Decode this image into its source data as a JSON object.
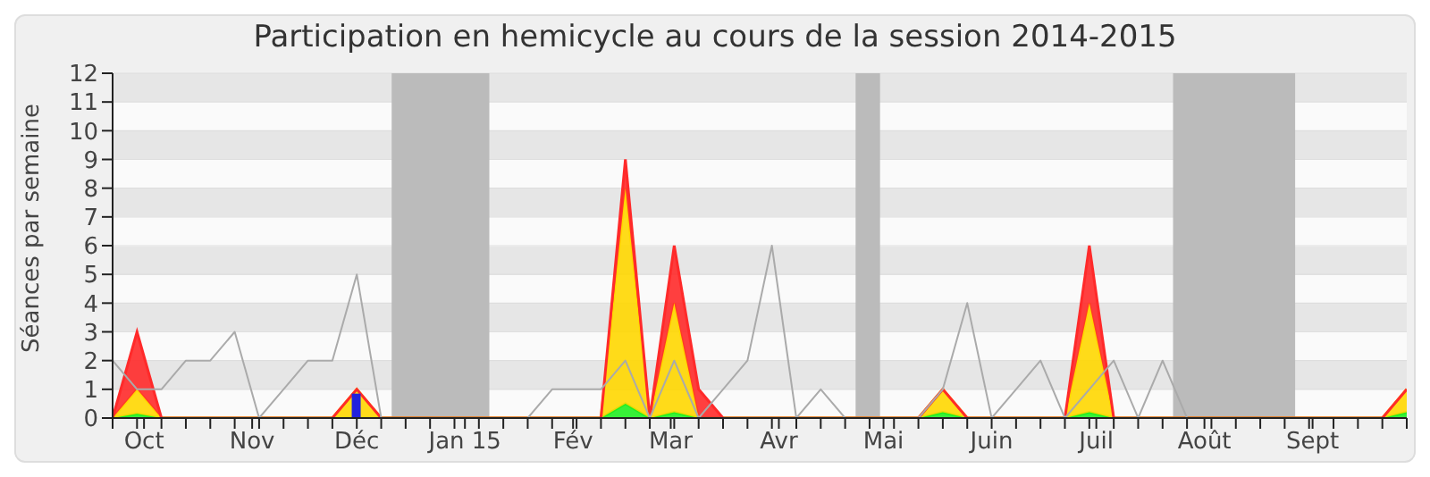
{
  "chart_data": {
    "type": "area",
    "title": "Participation en hemicycle au cours de la session 2014-2015",
    "ylabel": "Séances par semaine",
    "x": [
      "2014-09-22",
      "2014-09-29",
      "2014-10-06",
      "2014-10-13",
      "2014-10-20",
      "2014-10-27",
      "2014-11-03",
      "2014-11-10",
      "2014-11-17",
      "2014-11-24",
      "2014-12-01",
      "2014-12-08",
      "2014-12-15",
      "2014-12-22",
      "2014-12-29",
      "2015-01-05",
      "2015-01-12",
      "2015-01-19",
      "2015-01-26",
      "2015-02-02",
      "2015-02-09",
      "2015-02-16",
      "2015-02-23",
      "2015-03-02",
      "2015-03-09",
      "2015-03-16",
      "2015-03-23",
      "2015-03-30",
      "2015-04-06",
      "2015-04-13",
      "2015-04-20",
      "2015-04-27",
      "2015-05-04",
      "2015-05-11",
      "2015-05-18",
      "2015-05-25",
      "2015-06-01",
      "2015-06-08",
      "2015-06-15",
      "2015-06-22",
      "2015-06-29",
      "2015-07-06",
      "2015-07-13",
      "2015-07-20",
      "2015-07-27",
      "2015-08-03",
      "2015-08-10",
      "2015-08-17",
      "2015-08-24",
      "2015-08-31",
      "2015-09-07",
      "2015-09-14",
      "2015-09-21",
      "2015-09-28"
    ],
    "xlim": [
      "2014-09-22",
      "2015-09-28"
    ],
    "xticks": [
      {
        "value": "2014-09-22",
        "label": null
      },
      {
        "value": "2014-09-29",
        "label": null
      },
      {
        "value": "2014-10-01",
        "label": "Oct"
      },
      {
        "value": "2014-10-06",
        "label": null
      },
      {
        "value": "2014-10-13",
        "label": null
      },
      {
        "value": "2014-10-20",
        "label": null
      },
      {
        "value": "2014-10-27",
        "label": null
      },
      {
        "value": "2014-11-01",
        "label": "Nov"
      },
      {
        "value": "2014-11-03",
        "label": null
      },
      {
        "value": "2014-11-10",
        "label": null
      },
      {
        "value": "2014-11-17",
        "label": null
      },
      {
        "value": "2014-11-24",
        "label": null
      },
      {
        "value": "2014-12-01",
        "label": "Déc"
      },
      {
        "value": "2014-12-08",
        "label": null
      },
      {
        "value": "2014-12-15",
        "label": null
      },
      {
        "value": "2014-12-22",
        "label": null
      },
      {
        "value": "2014-12-29",
        "label": null
      },
      {
        "value": "2015-01-01",
        "label": "Jan 15"
      },
      {
        "value": "2015-01-05",
        "label": null
      },
      {
        "value": "2015-01-12",
        "label": null
      },
      {
        "value": "2015-01-19",
        "label": null
      },
      {
        "value": "2015-01-26",
        "label": null
      },
      {
        "value": "2015-02-01",
        "label": "Fév"
      },
      {
        "value": "2015-02-02",
        "label": null
      },
      {
        "value": "2015-02-09",
        "label": null
      },
      {
        "value": "2015-02-16",
        "label": null
      },
      {
        "value": "2015-02-23",
        "label": null
      },
      {
        "value": "2015-03-01",
        "label": "Mar"
      },
      {
        "value": "2015-03-02",
        "label": null
      },
      {
        "value": "2015-03-09",
        "label": null
      },
      {
        "value": "2015-03-16",
        "label": null
      },
      {
        "value": "2015-03-23",
        "label": null
      },
      {
        "value": "2015-03-30",
        "label": null
      },
      {
        "value": "2015-04-01",
        "label": "Avr"
      },
      {
        "value": "2015-04-06",
        "label": null
      },
      {
        "value": "2015-04-13",
        "label": null
      },
      {
        "value": "2015-04-20",
        "label": null
      },
      {
        "value": "2015-04-27",
        "label": null
      },
      {
        "value": "2015-05-01",
        "label": "Mai"
      },
      {
        "value": "2015-05-04",
        "label": null
      },
      {
        "value": "2015-05-11",
        "label": null
      },
      {
        "value": "2015-05-18",
        "label": null
      },
      {
        "value": "2015-05-25",
        "label": null
      },
      {
        "value": "2015-06-01",
        "label": "Juin"
      },
      {
        "value": "2015-06-08",
        "label": null
      },
      {
        "value": "2015-06-15",
        "label": null
      },
      {
        "value": "2015-06-22",
        "label": null
      },
      {
        "value": "2015-06-29",
        "label": null
      },
      {
        "value": "2015-07-01",
        "label": "Juil"
      },
      {
        "value": "2015-07-06",
        "label": null
      },
      {
        "value": "2015-07-13",
        "label": null
      },
      {
        "value": "2015-07-20",
        "label": null
      },
      {
        "value": "2015-07-27",
        "label": null
      },
      {
        "value": "2015-08-01",
        "label": "Août"
      },
      {
        "value": "2015-08-03",
        "label": null
      },
      {
        "value": "2015-08-10",
        "label": null
      },
      {
        "value": "2015-08-17",
        "label": null
      },
      {
        "value": "2015-08-24",
        "label": null
      },
      {
        "value": "2015-08-31",
        "label": null
      },
      {
        "value": "2015-09-01",
        "label": "Sept"
      },
      {
        "value": "2015-09-07",
        "label": null
      },
      {
        "value": "2015-09-14",
        "label": null
      },
      {
        "value": "2015-09-21",
        "label": null
      },
      {
        "value": "2015-09-28",
        "label": null
      }
    ],
    "ylim": [
      0,
      12
    ],
    "yticks": [
      0,
      1,
      2,
      3,
      4,
      5,
      6,
      7,
      8,
      9,
      10,
      11,
      12
    ],
    "grid": "y",
    "stacked": true,
    "bands": [
      {
        "axis": "x",
        "from": "2014-12-11",
        "to": "2015-01-08",
        "color": "#bbbbbb"
      },
      {
        "axis": "x",
        "from": "2015-04-23",
        "to": "2015-04-30",
        "color": "#bbbbbb"
      },
      {
        "axis": "x",
        "from": "2015-07-23",
        "to": "2015-08-27",
        "color": "#bbbbbb"
      }
    ],
    "series": [
      {
        "color": "#22ee22",
        "values": [
          0,
          0.15,
          0,
          0,
          0,
          0,
          0,
          0,
          0,
          0,
          0,
          0,
          0,
          0,
          0,
          0,
          0,
          0,
          0,
          0,
          0,
          0.5,
          0,
          0.2,
          0,
          0,
          0,
          0,
          0,
          0,
          0,
          0,
          0,
          0,
          0.2,
          0,
          0,
          0,
          0,
          0,
          0.2,
          0,
          0,
          0,
          0,
          0,
          0,
          0,
          0,
          0,
          0,
          0,
          0,
          0.2
        ]
      },
      {
        "color": "#ffd700",
        "values": [
          0,
          0.85,
          0,
          0,
          0,
          0,
          0,
          0,
          0,
          0,
          1,
          0,
          0,
          0,
          0,
          0,
          0,
          0,
          0,
          0,
          0,
          7.5,
          0,
          3.8,
          0,
          0,
          0,
          0,
          0,
          0,
          0,
          0,
          0,
          0,
          0.8,
          0,
          0,
          0,
          0,
          0,
          3.8,
          0,
          0,
          0,
          0,
          0,
          0,
          0,
          0,
          0,
          0,
          0,
          0,
          0.8
        ]
      },
      {
        "color": "#ff2a2a",
        "values": [
          0,
          2,
          0,
          0,
          0,
          0,
          0,
          0,
          0,
          0,
          0,
          0,
          0,
          0,
          0,
          0,
          0,
          0,
          0,
          0,
          0,
          1,
          0,
          2,
          1,
          0,
          0,
          0,
          0,
          0,
          0,
          0,
          0,
          0,
          0,
          0,
          0,
          0,
          0,
          0,
          2,
          0,
          0,
          0,
          0,
          0,
          0,
          0,
          0,
          0,
          0,
          0,
          0,
          0
        ]
      },
      {
        "type": "bar",
        "color": "#2222dd",
        "values": [
          null,
          null,
          null,
          null,
          null,
          null,
          null,
          null,
          null,
          null,
          0.85,
          null,
          null,
          null,
          null,
          null,
          null,
          null,
          null,
          null,
          null,
          null,
          null,
          null,
          null,
          null,
          null,
          null,
          null,
          null,
          null,
          null,
          null,
          null,
          null,
          null,
          null,
          null,
          null,
          null,
          null,
          null,
          null,
          null,
          null,
          null,
          null,
          null,
          null,
          null,
          null,
          null,
          null,
          null
        ]
      },
      {
        "type": "line",
        "color": "#aaaaaa",
        "values": [
          2,
          1,
          1,
          2,
          2,
          3,
          0,
          1,
          2,
          2,
          5,
          0,
          0,
          0,
          0,
          0,
          0,
          0,
          1,
          1,
          1,
          2,
          0,
          2,
          0,
          1,
          2,
          6,
          0,
          1,
          0,
          0,
          0,
          0,
          1,
          4,
          0,
          1,
          2,
          0,
          1,
          2,
          0,
          2,
          0,
          null,
          null,
          null,
          null,
          null,
          null,
          null,
          null,
          null
        ]
      }
    ]
  }
}
